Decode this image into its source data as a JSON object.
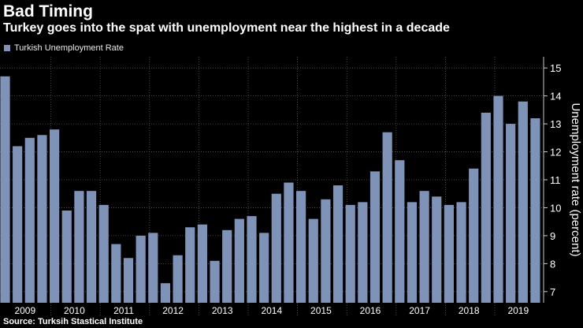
{
  "chart_data": {
    "type": "bar",
    "title": "Bad Timing",
    "subtitle": "Turkey goes into the spat with unemployment near the highest in a decade",
    "source": "Source: Turksih Stastical Institute",
    "ylabel": "Unemployment rate (percent)",
    "xlabel": "",
    "ylim": [
      6.6,
      15.4
    ],
    "yticks": [
      7,
      8,
      9,
      10,
      11,
      12,
      13,
      14,
      15
    ],
    "grid": true,
    "legend_position": "top-left",
    "bar_color": "#7f93b8",
    "year_labels": [
      "2009",
      "2010",
      "2011",
      "2012",
      "2013",
      "2014",
      "2015",
      "2016",
      "2017",
      "2018",
      "2019"
    ],
    "series": [
      {
        "name": "Turkish Unemployment Rate",
        "values": [
          14.7,
          12.2,
          12.5,
          12.6,
          12.8,
          9.9,
          10.6,
          10.6,
          10.1,
          8.7,
          8.2,
          9.0,
          9.1,
          7.3,
          8.3,
          9.3,
          9.4,
          8.1,
          9.2,
          9.6,
          9.7,
          9.1,
          10.5,
          10.9,
          10.6,
          9.6,
          10.3,
          10.8,
          10.1,
          10.2,
          11.3,
          12.7,
          11.7,
          10.2,
          10.6,
          10.4,
          10.1,
          10.2,
          11.4,
          13.4,
          14.0,
          13.0,
          13.8,
          13.2
        ]
      }
    ]
  }
}
